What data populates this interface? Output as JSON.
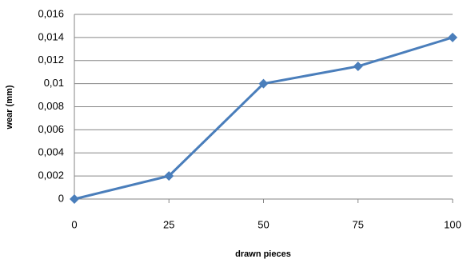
{
  "chart_data": {
    "type": "line",
    "x_label": "drawn pieces",
    "y_label": "wear  (mm)",
    "x": [
      0,
      25,
      50,
      75,
      100
    ],
    "series": [
      {
        "color": "#4a7ebb",
        "values": [
          0,
          0.002,
          0.01,
          0.0115,
          0.014
        ]
      }
    ],
    "xlim": [
      0,
      100
    ],
    "xticks": [
      0,
      25,
      50,
      75,
      100
    ],
    "ylim": [
      0,
      0.016
    ],
    "yticks": [
      0,
      {
        "value": 0.002,
        "label": "0,002"
      },
      {
        "value": 0.004,
        "label": "0,004"
      },
      {
        "value": 0.006,
        "label": "0,006"
      },
      {
        "value": 0.008,
        "label": "0,008"
      },
      {
        "value": 0.01,
        "label": "0,01"
      },
      {
        "value": 0.012,
        "label": "0,012"
      },
      {
        "value": 0.014,
        "label": "0,014"
      },
      {
        "value": 0.016,
        "label": "0,016"
      }
    ],
    "grid": true
  }
}
